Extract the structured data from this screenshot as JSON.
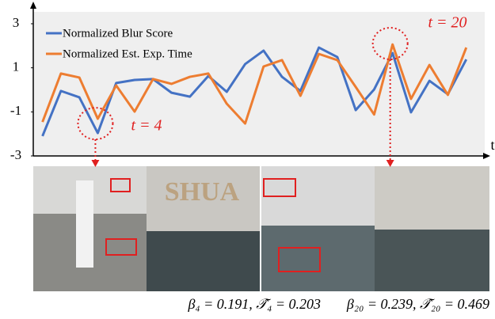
{
  "chart_data": {
    "type": "line",
    "x_label": "t",
    "x": [
      1,
      2,
      3,
      4,
      5,
      6,
      7,
      8,
      9,
      10,
      11,
      12,
      13,
      14,
      15,
      16,
      17,
      18,
      19,
      20,
      21,
      22,
      23,
      24
    ],
    "xlim": [
      0.5,
      25
    ],
    "ylim": [
      -3,
      3
    ],
    "yticks": [
      3,
      1,
      -1,
      -3
    ],
    "series": [
      {
        "name": "Normalized Blur Score",
        "color": "#4472c4",
        "values": [
          -2.1,
          -0.05,
          -0.34,
          -1.96,
          0.31,
          0.45,
          0.49,
          -0.13,
          -0.31,
          0.63,
          -0.09,
          1.17,
          1.78,
          0.59,
          -0.05,
          1.92,
          1.49,
          -0.92,
          0.02,
          1.67,
          -1.02,
          0.41,
          -0.2,
          1.38
        ]
      },
      {
        "name": "Normalized Est. Exp. Time",
        "color": "#ed7d31",
        "values": [
          -1.46,
          0.74,
          0.56,
          -1.31,
          0.2,
          -0.99,
          0.49,
          0.27,
          0.59,
          0.74,
          -0.63,
          -1.53,
          1.06,
          1.35,
          -0.27,
          1.63,
          1.35,
          0.13,
          -1.12,
          2.06,
          -0.41,
          1.13,
          -0.23,
          1.92
        ]
      }
    ],
    "annotations": [
      "t = 4",
      "t = 20"
    ],
    "captions": [
      "β₄ = 0.191,  𝒯̂₄ = 0.203",
      "β₂₀ = 0.239,  𝒯̂₂₀ = 0.469"
    ]
  }
}
